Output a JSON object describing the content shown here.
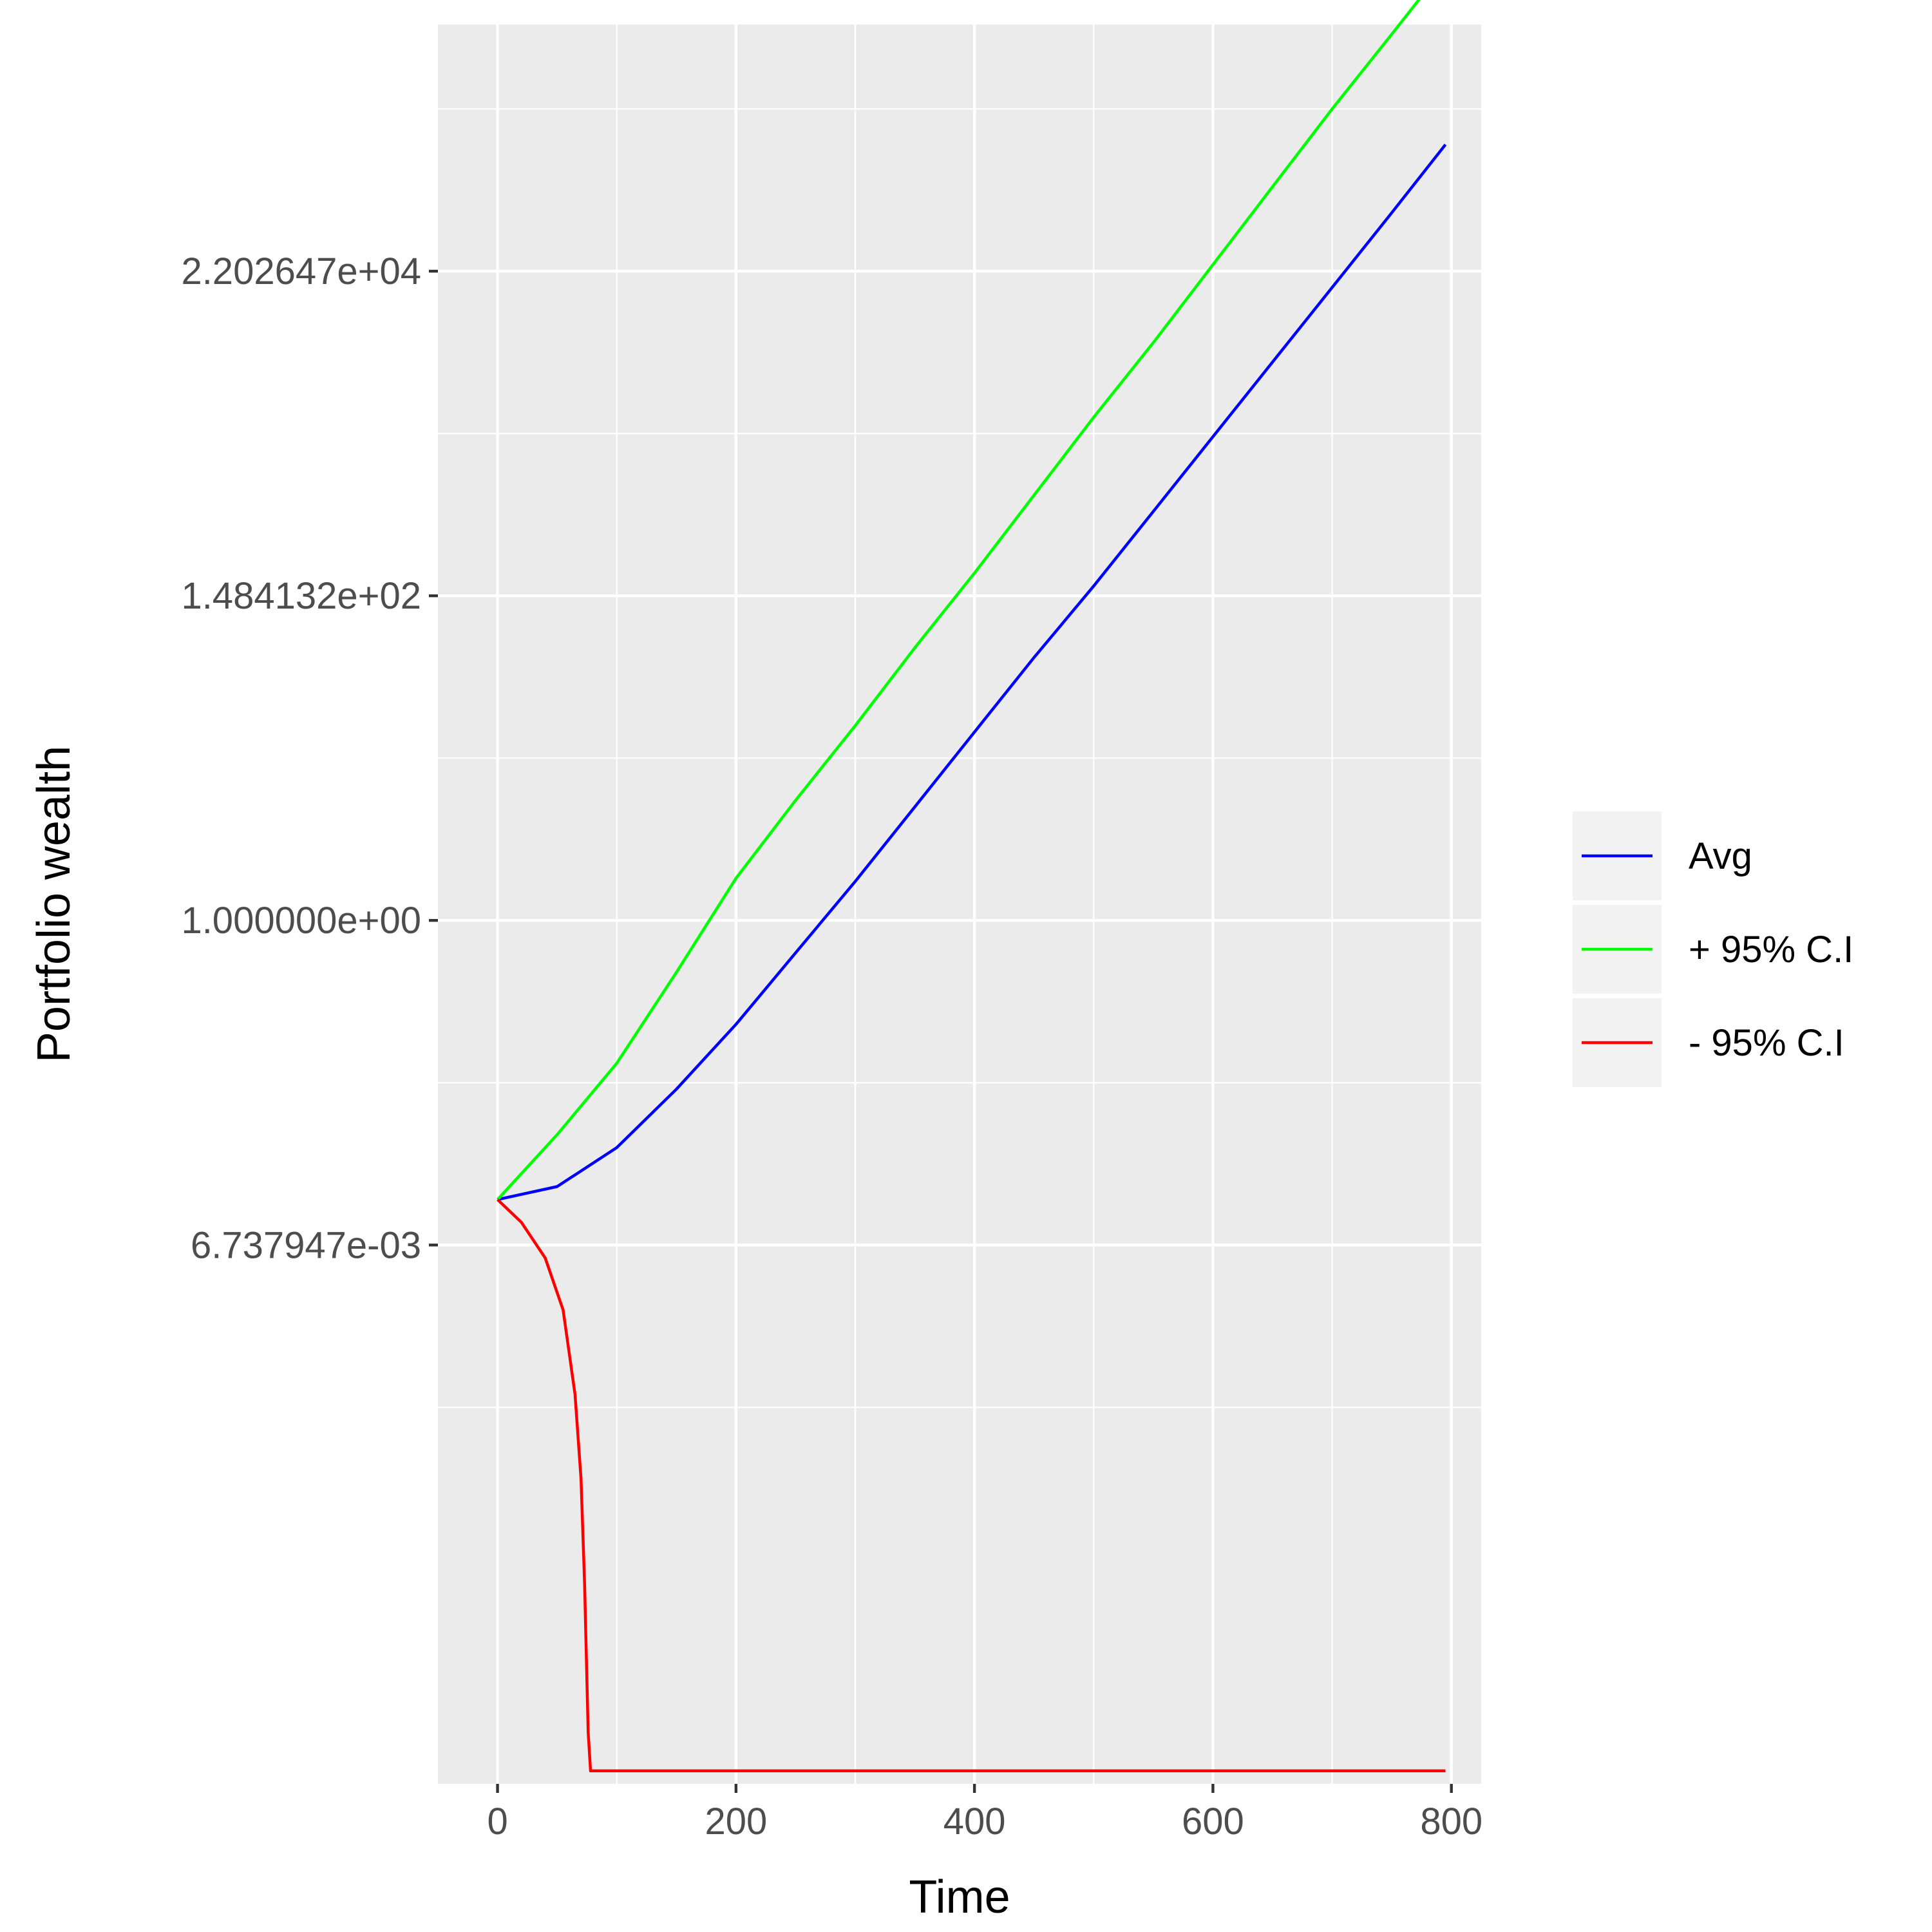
{
  "chart_data": {
    "type": "line",
    "xlabel": "Time",
    "ylabel": "Portfolio wealth",
    "xlim": [
      -50,
      825
    ],
    "x_ticks": [
      0,
      200,
      400,
      600,
      800
    ],
    "x_tick_labels": [
      "0",
      "200",
      "400",
      "600",
      "800"
    ],
    "y_scale": "log (natural)",
    "ylim_ln": [
      -13.3,
      13.8
    ],
    "y_ticks_ln": [
      -5,
      0,
      5,
      10
    ],
    "y_tick_labels": [
      "6.737947e-03",
      "1.000000e+00",
      "1.484132e+02",
      "2.202647e+04"
    ],
    "grid": true,
    "legend_position": "right",
    "series": [
      {
        "name": "Avg",
        "color": "#0000ff",
        "x": [
          0,
          50,
          100,
          150,
          200,
          250,
          300,
          350,
          400,
          450,
          500,
          550,
          600,
          650,
          700,
          750,
          795
        ],
        "y_ln": [
          -4.3,
          -4.1,
          -3.5,
          -2.6,
          -1.6,
          -0.5,
          0.6,
          1.75,
          2.9,
          4.05,
          5.15,
          6.3,
          7.45,
          8.6,
          9.75,
          10.9,
          11.95
        ]
      },
      {
        "name": "+ 95% C.I",
        "color": "#00ff00",
        "x": [
          0,
          50,
          100,
          150,
          200,
          250,
          300,
          350,
          400,
          450,
          500,
          550,
          600,
          650,
          700,
          750,
          795
        ],
        "y_ln": [
          -4.3,
          -3.3,
          -2.2,
          -0.8,
          0.65,
          1.85,
          3.0,
          4.2,
          5.35,
          6.55,
          7.75,
          8.9,
          10.1,
          11.3,
          12.5,
          13.65,
          14.7
        ]
      },
      {
        "name": "- 95% C.I",
        "color": "#ff0000",
        "x": [
          0,
          20,
          40,
          55,
          65,
          70,
          73,
          76,
          78,
          200,
          400,
          600,
          795
        ],
        "y_ln": [
          -4.3,
          -4.65,
          -5.2,
          -6.0,
          -7.3,
          -8.6,
          -10.2,
          -12.5,
          -13.1,
          -13.1,
          -13.1,
          -13.1,
          -13.1
        ]
      }
    ]
  }
}
